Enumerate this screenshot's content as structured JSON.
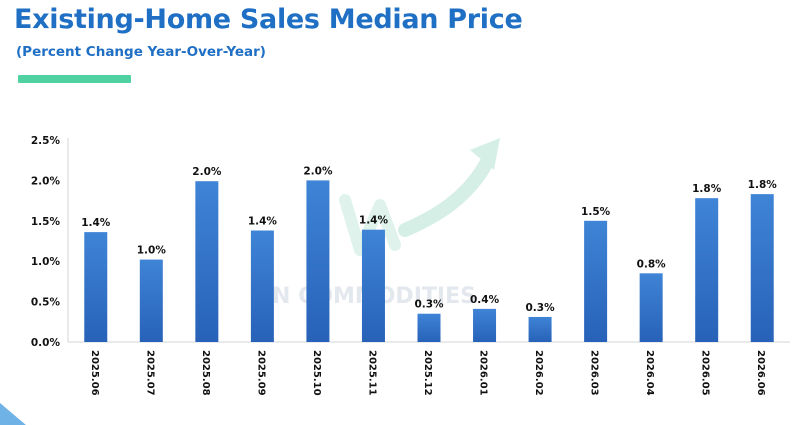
{
  "header": {
    "title": "Existing-Home Sales Median Price",
    "subtitle": "(Percent Change Year-Over-Year)"
  },
  "watermark": {
    "text": "VN COMMODITIES"
  },
  "colors": {
    "title": "#1f6fc4",
    "accent": "#4fd1a1",
    "bar_top": "#3f84d6",
    "bar_bottom": "#2762b8",
    "watermark": "#cfe9df"
  },
  "chart_data": {
    "type": "bar",
    "categories": [
      "2025.06",
      "2025.07",
      "2025.08",
      "2025.09",
      "2025.10",
      "2025.11",
      "2025.12",
      "2026.01",
      "2026.02",
      "2026.03",
      "2026.04",
      "2026.05",
      "2026.06"
    ],
    "values": [
      1.36,
      1.02,
      1.99,
      1.38,
      2.0,
      1.39,
      0.35,
      0.41,
      0.31,
      1.5,
      0.85,
      1.78,
      1.83
    ],
    "data_labels": [
      "1.4%",
      "1.0%",
      "2.0%",
      "1.4%",
      "2.0%",
      "1.4%",
      "0.3%",
      "0.4%",
      "0.3%",
      "1.5%",
      "0.8%",
      "1.8%",
      "1.8%"
    ],
    "y_ticks": [
      "0.0%",
      "0.5%",
      "1.0%",
      "1.5%",
      "2.0%",
      "2.5%"
    ],
    "ylim": [
      0,
      2.5
    ],
    "grid": false,
    "title": "Existing-Home Sales Median Price",
    "subtitle": "(Percent Change Year-Over-Year)"
  }
}
